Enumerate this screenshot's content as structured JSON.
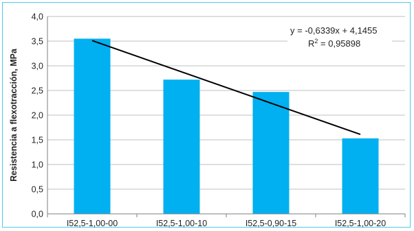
{
  "chart_data": {
    "type": "bar",
    "categories": [
      "I52,5-1,00-00",
      "I52,5-1,00-10",
      "I52,5-0,90-15",
      "I52,5-1,00-20"
    ],
    "series": [
      {
        "values": [
          3.55,
          2.72,
          2.47,
          1.53
        ],
        "color": "#00b0f0"
      }
    ],
    "trendline": {
      "type": "linear",
      "slope": -0.6339,
      "intercept": 4.1455,
      "equation": "y = -0,6339x + 4,1455",
      "r2_prefix": "R",
      "r2_sup": "2",
      "r2_value": " = 0,95898",
      "color": "#000000"
    },
    "ylabel": "Resistencia a flexotracción, MPa",
    "xlabel": "",
    "ylim": [
      0,
      4
    ],
    "yticks": [
      "0,0",
      "0,5",
      "1,0",
      "1,5",
      "2,0",
      "2,5",
      "3,0",
      "3,5",
      "4,0"
    ],
    "grid": true,
    "grid_color": "#bfbfbf",
    "legend": "none"
  }
}
